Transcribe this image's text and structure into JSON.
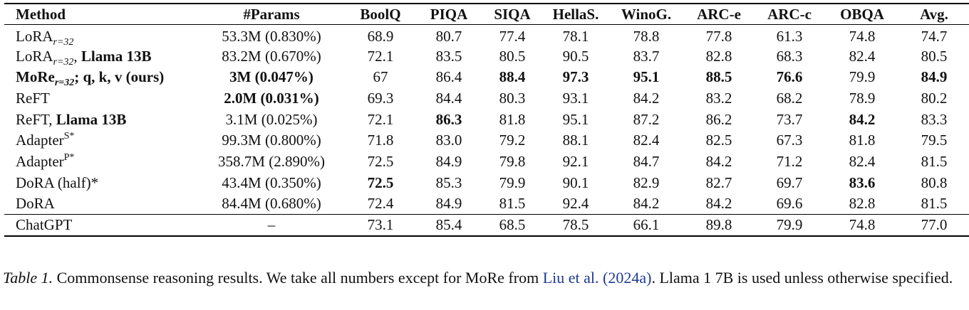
{
  "table": {
    "headers": [
      "Method",
      "#Params",
      "BoolQ",
      "PIQA",
      "SIQA",
      "HellaS.",
      "WinoG.",
      "ARC-e",
      "ARC-c",
      "OBQA",
      "Avg."
    ],
    "rows": [
      {
        "method": {
          "base": "LoRA",
          "sub": "r=32",
          "sup": "",
          "suffix": "",
          "suffix_bold": ""
        },
        "params": "53.3M (0.830%)",
        "values": [
          "68.9",
          "80.7",
          "77.4",
          "78.1",
          "78.8",
          "77.8",
          "61.3",
          "74.8",
          "74.7"
        ]
      },
      {
        "method": {
          "base": "LoRA",
          "sub": "r=32",
          "sup": "",
          "suffix": ", ",
          "suffix_bold": "Llama 13B"
        },
        "params": "83.2M (0.670%)",
        "values": [
          "72.1",
          "83.5",
          "80.5",
          "90.5",
          "83.7",
          "82.8",
          "68.3",
          "82.4",
          "80.5"
        ]
      },
      {
        "method": {
          "base": "MoRe",
          "sub": "r=32",
          "sup": "",
          "suffix": "; q, k, v (ours)",
          "suffix_bold": ""
        },
        "params": "3M (0.047%)",
        "values": [
          "67",
          "86.4",
          "88.4",
          "97.3",
          "95.1",
          "88.5",
          "76.6",
          "79.9",
          "84.9"
        ]
      },
      {
        "method": {
          "base": "ReFT",
          "sub": "",
          "sup": "",
          "suffix": "",
          "suffix_bold": ""
        },
        "params": "2.0M (0.031%)",
        "values": [
          "69.3",
          "84.4",
          "80.3",
          "93.1",
          "84.2",
          "83.2",
          "68.2",
          "78.9",
          "80.2"
        ]
      },
      {
        "method": {
          "base": "ReFT, ",
          "sub": "",
          "sup": "",
          "suffix": "",
          "suffix_bold": "Llama 13B"
        },
        "params": "3.1M (0.025%)",
        "values": [
          "72.1",
          "86.3",
          "81.8",
          "95.1",
          "87.2",
          "86.2",
          "73.7",
          "84.2",
          "83.3"
        ]
      },
      {
        "method": {
          "base": "Adapter",
          "sub": "",
          "sup": "S*",
          "suffix": "",
          "suffix_bold": ""
        },
        "params": "99.3M (0.800%)",
        "values": [
          "71.8",
          "83.0",
          "79.2",
          "88.1",
          "82.4",
          "82.5",
          "67.3",
          "81.8",
          "79.5"
        ]
      },
      {
        "method": {
          "base": "Adapter",
          "sub": "",
          "sup": "P*",
          "suffix": "",
          "suffix_bold": ""
        },
        "params": "358.7M (2.890%)",
        "values": [
          "72.5",
          "84.9",
          "79.8",
          "92.1",
          "84.7",
          "84.2",
          "71.2",
          "82.4",
          "81.5"
        ]
      },
      {
        "method": {
          "base": "DoRA (half)*",
          "sub": "",
          "sup": "",
          "suffix": "",
          "suffix_bold": ""
        },
        "params": "43.4M (0.350%)",
        "values": [
          "72.5",
          "85.3",
          "79.9",
          "90.1",
          "82.9",
          "82.7",
          "69.7",
          "83.6",
          "80.8"
        ]
      },
      {
        "method": {
          "base": "DoRA",
          "sub": "",
          "sup": "",
          "suffix": "",
          "suffix_bold": ""
        },
        "params": "84.4M (0.680%)",
        "values": [
          "72.4",
          "84.9",
          "81.5",
          "92.4",
          "84.2",
          "84.2",
          "69.6",
          "82.8",
          "81.5"
        ]
      },
      {
        "method": {
          "base": "ChatGPT",
          "sub": "",
          "sup": "",
          "suffix": "",
          "suffix_bold": ""
        },
        "params": "–",
        "values": [
          "73.1",
          "85.4",
          "68.5",
          "78.5",
          "66.1",
          "89.8",
          "79.9",
          "74.8",
          "77.0"
        ]
      }
    ]
  },
  "caption": {
    "label": "Table 1.",
    "text_before": " Commonsense reasoning results.  We take all numbers except for MoRe from ",
    "cite_authors": "Liu et al.",
    "cite_year": "(2024a)",
    "text_after": ".  Llama 1 7B is used unless otherwise specified."
  }
}
